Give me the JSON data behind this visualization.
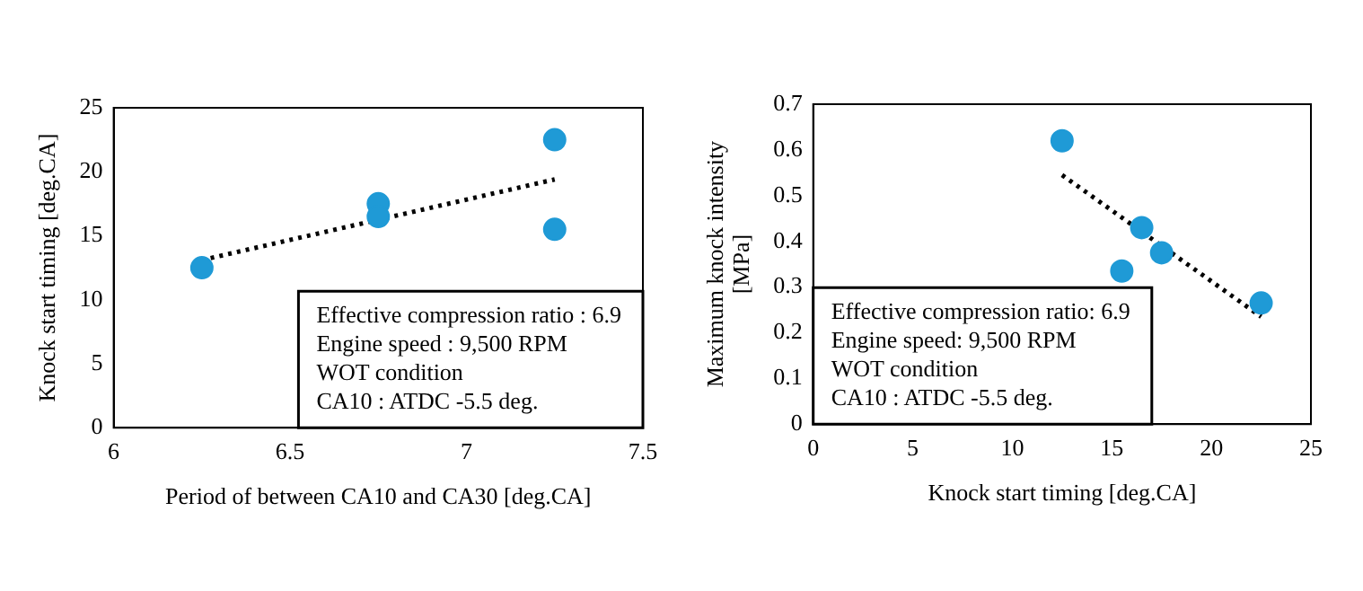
{
  "chart_data": [
    {
      "type": "scatter",
      "xlabel": "Period of between CA10 and CA30 [deg.CA]",
      "ylabel": "Knock start timing [deg.CA]",
      "xlim": [
        6,
        7.5
      ],
      "xticks": [
        6,
        6.5,
        7,
        7.5
      ],
      "ylim": [
        0,
        25
      ],
      "yticks": [
        0,
        5,
        10,
        15,
        20,
        25
      ],
      "grid": false,
      "legend": false,
      "annotations": [
        "Effective compression ratio : 6.9",
        "Engine speed : 9,500 RPM",
        "WOT condition",
        "CA10 : ATDC -5.5 deg."
      ],
      "series": [
        {
          "color": "#1f9ad6",
          "marker": "circle",
          "x": [
            6.25,
            6.75,
            6.75,
            7.25,
            7.25
          ],
          "values": [
            12.5,
            17.5,
            16.5,
            22.5,
            15.5
          ]
        },
        {
          "type": "line",
          "color": "#000000",
          "marker": "none",
          "line_style": "dotted",
          "x": [
            6.25,
            7.25
          ],
          "values": [
            13.1,
            19.4
          ]
        }
      ]
    },
    {
      "type": "scatter",
      "xlabel": "Knock start timing [deg.CA]",
      "ylabel": "Maximum knock intensity [MPa]",
      "xlim": [
        0,
        25
      ],
      "xticks": [
        0,
        5,
        10,
        15,
        20,
        25
      ],
      "ylim": [
        0,
        0.7
      ],
      "yticks": [
        0,
        0.1,
        0.2,
        0.3,
        0.4,
        0.5,
        0.6,
        0.7
      ],
      "grid": false,
      "legend": false,
      "annotations": [
        "Effective compression ratio: 6.9",
        "Engine speed: 9,500 RPM",
        "WOT condition",
        "CA10 : ATDC -5.5 deg."
      ],
      "series": [
        {
          "color": "#1f9ad6",
          "marker": "circle",
          "x": [
            12.5,
            15.5,
            16.5,
            17.5,
            22.5
          ],
          "values": [
            0.62,
            0.335,
            0.43,
            0.375,
            0.265
          ]
        },
        {
          "type": "line",
          "color": "#000000",
          "marker": "none",
          "line_style": "dotted",
          "x": [
            12.5,
            22.5
          ],
          "values": [
            0.545,
            0.235
          ]
        }
      ]
    }
  ]
}
